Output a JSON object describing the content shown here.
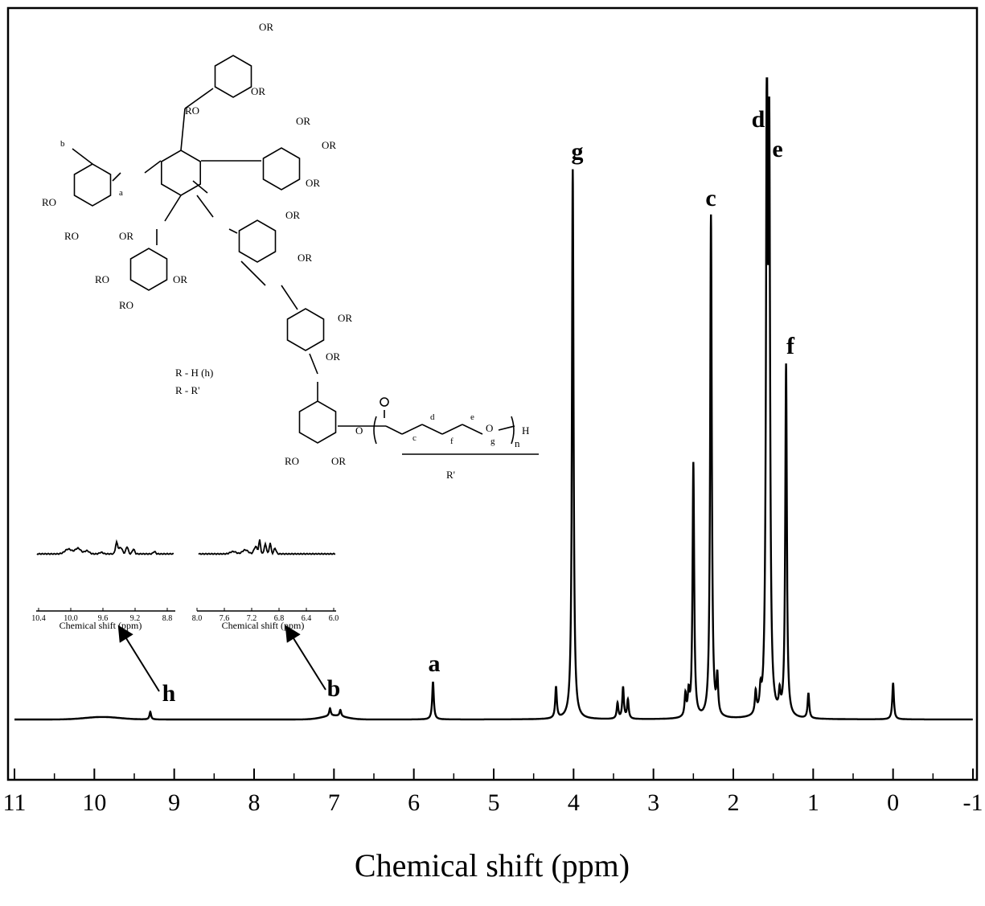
{
  "chart_data": {
    "type": "line",
    "title": "",
    "xlabel": "Chemical shift (ppm)",
    "ylabel": "",
    "xlim": [
      11,
      -1
    ],
    "x_reversed": true,
    "x_ticks": [
      "11",
      "10",
      "9",
      "8",
      "7",
      "6",
      "5",
      "4",
      "3",
      "2",
      "1",
      "0",
      "-1"
    ],
    "grid": false,
    "y_units": "relative intensity (tallest peak = 1)",
    "peaks": [
      {
        "ppm": 9.3,
        "intensity": 0.012,
        "label": "h"
      },
      {
        "ppm": 7.05,
        "intensity": 0.012,
        "label": "b"
      },
      {
        "ppm": 6.92,
        "intensity": 0.01,
        "label": ""
      },
      {
        "ppm": 5.76,
        "intensity": 0.06,
        "label": "a"
      },
      {
        "ppm": 4.22,
        "intensity": 0.05,
        "label": ""
      },
      {
        "ppm": 4.01,
        "intensity": 0.875,
        "label": "g"
      },
      {
        "ppm": 3.45,
        "intensity": 0.025,
        "label": ""
      },
      {
        "ppm": 3.38,
        "intensity": 0.05,
        "label": ""
      },
      {
        "ppm": 3.32,
        "intensity": 0.03,
        "label": ""
      },
      {
        "ppm": 2.6,
        "intensity": 0.035,
        "label": ""
      },
      {
        "ppm": 2.56,
        "intensity": 0.035,
        "label": ""
      },
      {
        "ppm": 2.5,
        "intensity": 0.405,
        "label": ""
      },
      {
        "ppm": 2.28,
        "intensity": 0.8,
        "label": "c"
      },
      {
        "ppm": 2.2,
        "intensity": 0.06,
        "label": ""
      },
      {
        "ppm": 1.72,
        "intensity": 0.035,
        "label": ""
      },
      {
        "ppm": 1.66,
        "intensity": 0.03,
        "label": ""
      },
      {
        "ppm": 1.58,
        "intensity": 1.0,
        "label": "d"
      },
      {
        "ppm": 1.55,
        "intensity": 0.85,
        "label": "e"
      },
      {
        "ppm": 1.42,
        "intensity": 0.03,
        "label": ""
      },
      {
        "ppm": 1.34,
        "intensity": 0.56,
        "label": "f"
      },
      {
        "ppm": 1.06,
        "intensity": 0.04,
        "label": ""
      },
      {
        "ppm": 0.0,
        "intensity": 0.058,
        "label": ""
      }
    ],
    "insets": [
      {
        "x_ticks": [
          "10.4",
          "10.0",
          "9.6",
          "9.2",
          "8.8"
        ],
        "xlabel": "Chemical shift (ppm)",
        "arrow_label": "h"
      },
      {
        "x_ticks": [
          "8.0",
          "7.6",
          "7.2",
          "6.8",
          "6.4",
          "6.0"
        ],
        "xlabel": "Chemical shift (ppm)",
        "arrow_label": "b"
      }
    ]
  },
  "structure": {
    "or": "OR",
    "ro": "RO",
    "legend_h": "R - H (h)",
    "legend_r": "R - R'",
    "r_prime": "R'",
    "n": "n",
    "h": "H",
    "o": "O",
    "labels": {
      "a": "a",
      "b": "b",
      "c": "c",
      "d": "d",
      "e": "e",
      "f": "f",
      "g": "g"
    }
  }
}
